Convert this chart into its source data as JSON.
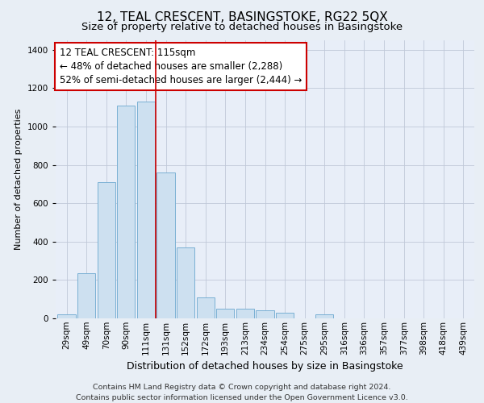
{
  "title": "12, TEAL CRESCENT, BASINGSTOKE, RG22 5QX",
  "subtitle": "Size of property relative to detached houses in Basingstoke",
  "xlabel": "Distribution of detached houses by size in Basingstoke",
  "ylabel": "Number of detached properties",
  "categories": [
    "29sqm",
    "49sqm",
    "70sqm",
    "90sqm",
    "111sqm",
    "131sqm",
    "152sqm",
    "172sqm",
    "193sqm",
    "213sqm",
    "234sqm",
    "254sqm",
    "275sqm",
    "295sqm",
    "316sqm",
    "336sqm",
    "357sqm",
    "377sqm",
    "398sqm",
    "418sqm",
    "439sqm"
  ],
  "bar_heights": [
    20,
    235,
    710,
    1110,
    1130,
    760,
    370,
    110,
    50,
    50,
    40,
    30,
    0,
    20,
    0,
    0,
    0,
    0,
    0,
    0,
    0
  ],
  "bar_color_fill": "#cde0f0",
  "bar_color_edge": "#7ab0d4",
  "vline_x": 4.5,
  "vline_color": "#cc0000",
  "annotation_text_line1": "12 TEAL CRESCENT: 115sqm",
  "annotation_text_line2": "← 48% of detached houses are smaller (2,288)",
  "annotation_text_line3": "52% of semi-detached houses are larger (2,444) →",
  "annotation_box_color": "#ffffff",
  "annotation_border_color": "#cc0000",
  "ylim": [
    0,
    1450
  ],
  "yticks": [
    0,
    200,
    400,
    600,
    800,
    1000,
    1200,
    1400
  ],
  "bg_color": "#e8eef5",
  "plot_bg_color": "#e8eef8",
  "grid_color": "#c0c8d8",
  "footnote_line1": "Contains HM Land Registry data © Crown copyright and database right 2024.",
  "footnote_line2": "Contains public sector information licensed under the Open Government Licence v3.0.",
  "title_fontsize": 11,
  "subtitle_fontsize": 9.5,
  "xlabel_fontsize": 9,
  "ylabel_fontsize": 8,
  "tick_fontsize": 7.5,
  "footnote_fontsize": 6.8,
  "annotation_fontsize": 8.5
}
